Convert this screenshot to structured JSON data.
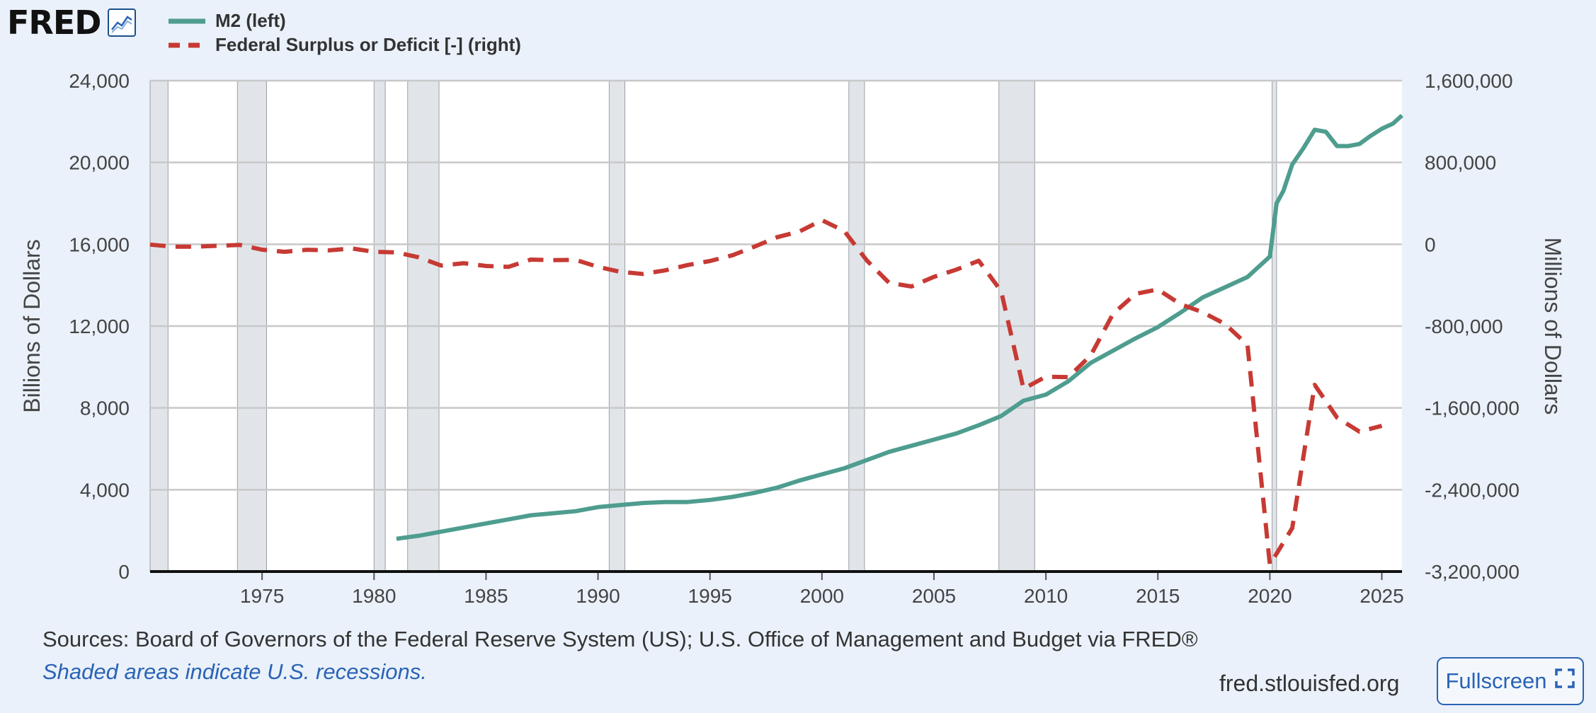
{
  "header": {
    "logo_text": "FRED"
  },
  "legend": [
    {
      "label": "M2 (left)",
      "color": "#4e9d8f",
      "style": "solid"
    },
    {
      "label": "Federal Surplus or Deficit [-] (right)",
      "color": "#c73a34",
      "style": "dashed"
    }
  ],
  "footer": {
    "sources": "Sources: Board of Governors of the Federal Reserve System (US); U.S. Office of Management and Budget via FRED®",
    "shaded_note": "Shaded areas indicate U.S. recessions.",
    "site": "fred.stlouisfed.org",
    "fullscreen_label": "Fullscreen"
  },
  "chart_data": {
    "type": "line",
    "xlim": [
      1970.0,
      2025.9
    ],
    "x_ticks": [
      1975,
      1980,
      1985,
      1990,
      1995,
      2000,
      2005,
      2010,
      2015,
      2020,
      2025
    ],
    "left_axis": {
      "label": "Billions of Dollars",
      "lim": [
        0,
        24000
      ],
      "ticks": [
        0,
        4000,
        8000,
        12000,
        16000,
        20000,
        24000
      ],
      "tick_labels": [
        "0",
        "4,000",
        "8,000",
        "12,000",
        "16,000",
        "20,000",
        "24,000"
      ]
    },
    "right_axis": {
      "label": "Millions of Dollars",
      "lim": [
        -3200000,
        1600000
      ],
      "ticks": [
        -3200000,
        -2400000,
        -1600000,
        -800000,
        0,
        800000,
        1600000
      ],
      "tick_labels": [
        "-3,200,000",
        "-2,400,000",
        "-1,600,000",
        "-800,000",
        "0",
        "800,000",
        "1,600,000"
      ]
    },
    "grid": true,
    "recessions": [
      [
        1970.0,
        1970.8
      ],
      [
        1973.9,
        1975.2
      ],
      [
        1980.0,
        1980.5
      ],
      [
        1981.5,
        1982.9
      ],
      [
        1990.5,
        1991.2
      ],
      [
        2001.2,
        2001.9
      ],
      [
        2007.9,
        2009.5
      ],
      [
        2020.1,
        2020.3
      ]
    ],
    "series": [
      {
        "name": "M2 (left)",
        "axis": "left",
        "color": "#4e9d8f",
        "style": "solid",
        "x": [
          1981.0,
          1982,
          1983,
          1984,
          1985,
          1986,
          1987,
          1988,
          1989,
          1990,
          1991,
          1992,
          1993,
          1994,
          1995,
          1996,
          1997,
          1998,
          1999,
          2000,
          2001,
          2002,
          2003,
          2004,
          2005,
          2006,
          2007,
          2008,
          2009,
          2010,
          2011,
          2012,
          2013,
          2014,
          2015,
          2016,
          2017,
          2018,
          2019,
          2020.0,
          2020.3,
          2020.6,
          2021.0,
          2021.5,
          2022.0,
          2022.5,
          2023.0,
          2023.5,
          2024.0,
          2024.5,
          2025.0,
          2025.5,
          2025.9
        ],
        "y": [
          1600,
          1750,
          1950,
          2150,
          2350,
          2550,
          2750,
          2850,
          2950,
          3150,
          3250,
          3350,
          3400,
          3400,
          3500,
          3650,
          3850,
          4100,
          4450,
          4750,
          5050,
          5450,
          5850,
          6150,
          6450,
          6750,
          7150,
          7600,
          8350,
          8650,
          9300,
          10200,
          10800,
          11400,
          11950,
          12650,
          13400,
          13900,
          14400,
          15400,
          18000,
          18600,
          19900,
          20700,
          21600,
          21500,
          20800,
          20800,
          20900,
          21300,
          21650,
          21900,
          22300
        ]
      },
      {
        "name": "Federal Surplus or Deficit [-] (right)",
        "axis": "right",
        "color": "#c73a34",
        "style": "dashed",
        "x": [
          1970,
          1971,
          1972,
          1973,
          1974,
          1975,
          1976,
          1977,
          1978,
          1979,
          1980,
          1981,
          1982,
          1983,
          1984,
          1985,
          1986,
          1987,
          1988,
          1989,
          1990,
          1991,
          1992,
          1993,
          1994,
          1995,
          1996,
          1997,
          1998,
          1999,
          2000,
          2001,
          2002,
          2003,
          2004,
          2005,
          2006,
          2007,
          2008,
          2009,
          2010,
          2011,
          2012,
          2013,
          2014,
          2015,
          2016,
          2017,
          2018,
          2019,
          2020,
          2021,
          2022,
          2023,
          2024,
          2025
        ],
        "y": [
          -3000,
          -23000,
          -23400,
          -14900,
          -6100,
          -53200,
          -73700,
          -53700,
          -59200,
          -40700,
          -73800,
          -79000,
          -128000,
          -207800,
          -185400,
          -212300,
          -221200,
          -149700,
          -155200,
          -152600,
          -221000,
          -269200,
          -290300,
          -255100,
          -203200,
          -164000,
          -107400,
          -21900,
          69300,
          125600,
          236200,
          128200,
          -157800,
          -377600,
          -412700,
          -318300,
          -248200,
          -160700,
          -458600,
          -1412700,
          -1294400,
          -1299600,
          -1087000,
          -679800,
          -485000,
          -442000,
          -585000,
          -665000,
          -779000,
          -984000,
          -3132000,
          -2775000,
          -1375000,
          -1695000,
          -1832000,
          -1775000
        ]
      }
    ]
  }
}
